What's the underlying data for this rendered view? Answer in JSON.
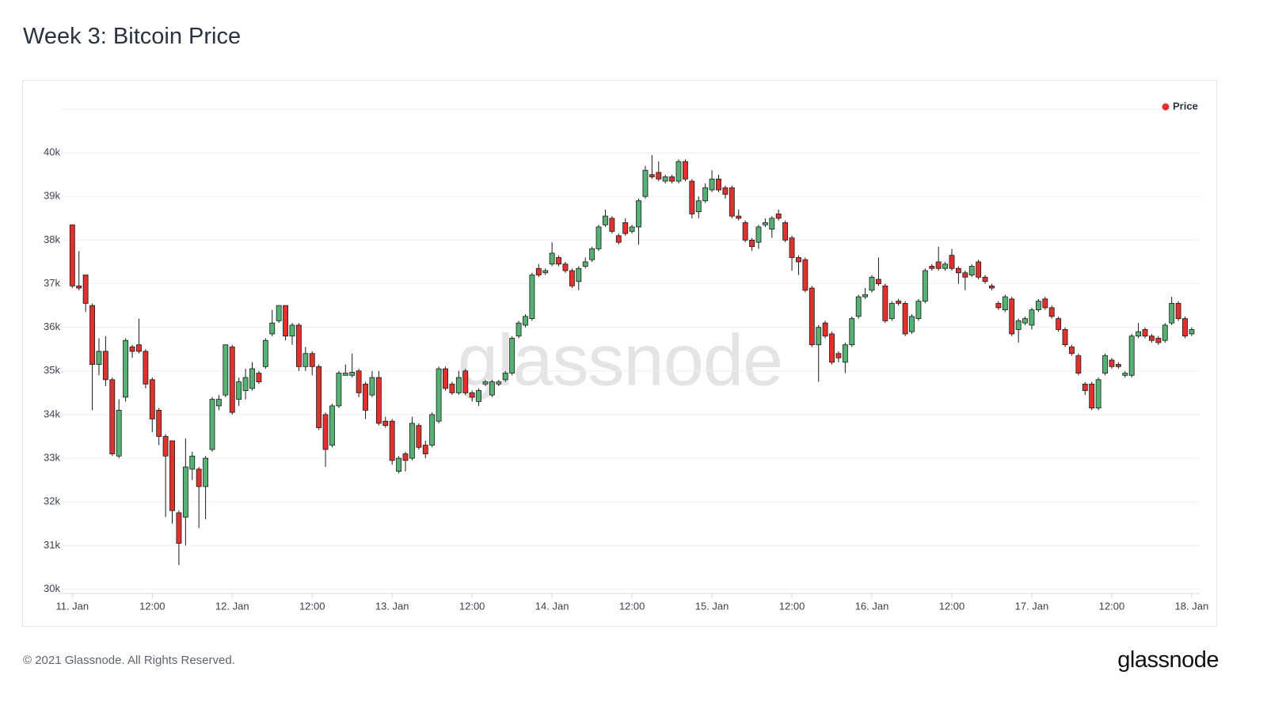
{
  "title": "Week 3: Bitcoin Price",
  "footer": "© 2021 Glassnode. All Rights Reserved.",
  "logo": "glassnode",
  "watermark": "glassnode",
  "chart_data": {
    "type": "candlestick",
    "legend": "top-right",
    "grid": true,
    "xlim": [
      -1.7,
      169.2
    ],
    "ylim": [
      29.9,
      41
    ],
    "yticks": [
      {
        "value": 30,
        "label": "30k"
      },
      {
        "value": 31,
        "label": "31k"
      },
      {
        "value": 32,
        "label": "32k"
      },
      {
        "value": 33,
        "label": "33k"
      },
      {
        "value": 34,
        "label": "34k"
      },
      {
        "value": 35,
        "label": "35k"
      },
      {
        "value": 36,
        "label": "36k"
      },
      {
        "value": 37,
        "label": "37k"
      },
      {
        "value": 38,
        "label": "38k"
      },
      {
        "value": 39,
        "label": "39k"
      },
      {
        "value": 40,
        "label": "40k"
      }
    ],
    "xticks": [
      {
        "value": 0,
        "label": "11. Jan"
      },
      {
        "value": 12,
        "label": "12:00"
      },
      {
        "value": 24,
        "label": "12. Jan"
      },
      {
        "value": 36,
        "label": "12:00"
      },
      {
        "value": 48,
        "label": "13. Jan"
      },
      {
        "value": 60,
        "label": "12:00"
      },
      {
        "value": 72,
        "label": "14. Jan"
      },
      {
        "value": 84,
        "label": "12:00"
      },
      {
        "value": 96,
        "label": "15. Jan"
      },
      {
        "value": 108,
        "label": "12:00"
      },
      {
        "value": 120,
        "label": "16. Jan"
      },
      {
        "value": 132,
        "label": "12:00"
      },
      {
        "value": 144,
        "label": "17. Jan"
      },
      {
        "value": 156,
        "label": "12:00"
      },
      {
        "value": 168,
        "label": "18. Jan"
      }
    ],
    "x": [
      0,
      1,
      2,
      3,
      4,
      5,
      6,
      7,
      8,
      9,
      10,
      11,
      12,
      13,
      14,
      15,
      16,
      17,
      18,
      19,
      20,
      21,
      22,
      23,
      24,
      25,
      26,
      27,
      28,
      29,
      30,
      31,
      32,
      33,
      34,
      35,
      36,
      37,
      38,
      39,
      40,
      41,
      42,
      43,
      44,
      45,
      46,
      47,
      48,
      49,
      50,
      51,
      52,
      53,
      54,
      55,
      56,
      57,
      58,
      59,
      60,
      61,
      62,
      63,
      64,
      65,
      66,
      67,
      68,
      69,
      70,
      71,
      72,
      73,
      74,
      75,
      76,
      77,
      78,
      79,
      80,
      81,
      82,
      83,
      84,
      85,
      86,
      87,
      88,
      89,
      90,
      91,
      92,
      93,
      94,
      95,
      96,
      97,
      98,
      99,
      100,
      101,
      102,
      103,
      104,
      105,
      106,
      107,
      108,
      109,
      110,
      111,
      112,
      113,
      114,
      115,
      116,
      117,
      118,
      119,
      120,
      121,
      122,
      123,
      124,
      125,
      126,
      127,
      128,
      129,
      130,
      131,
      132,
      133,
      134,
      135,
      136,
      137,
      138,
      139,
      140,
      141,
      142,
      143,
      144,
      145,
      146,
      147,
      148,
      149,
      150,
      151,
      152,
      153,
      154,
      155,
      156,
      157,
      158,
      159,
      160,
      161,
      162,
      163,
      164,
      165,
      166,
      167,
      168
    ],
    "series": [
      {
        "name": "Price",
        "color": "#e0312e",
        "up_color": "#56b274",
        "down_color": "#e0312e",
        "open": [
          38.35,
          36.95,
          37.2,
          36.5,
          35.15,
          35.45,
          34.8,
          33.05,
          34.4,
          35.55,
          35.6,
          35.45,
          34.8,
          34.1,
          33.5,
          33.4,
          31.75,
          31.65,
          32.75,
          32.75,
          32.35,
          33.2,
          34.2,
          34.45,
          35.55,
          34.35,
          34.55,
          34.6,
          34.95,
          35.1,
          35.85,
          36.15,
          36.5,
          35.8,
          36.05,
          35.1,
          35.4,
          35.1,
          34.0,
          33.3,
          34.2,
          34.9,
          34.9,
          35.0,
          34.7,
          34.45,
          34.85,
          33.85,
          33.85,
          32.7,
          33.1,
          33.0,
          33.75,
          33.3,
          33.3,
          33.85,
          35.05,
          34.7,
          34.5,
          35.0,
          34.5,
          34.3,
          34.7,
          34.45,
          34.7,
          34.8,
          34.95,
          35.8,
          36.05,
          36.2,
          37.35,
          37.25,
          37.45,
          37.6,
          37.45,
          37.3,
          37.05,
          37.4,
          37.55,
          37.8,
          38.35,
          38.5,
          38.1,
          38.4,
          38.2,
          38.3,
          39.0,
          39.5,
          39.55,
          39.35,
          39.45,
          39.35,
          39.8,
          39.35,
          38.65,
          38.9,
          39.15,
          39.4,
          39.2,
          39.2,
          38.55,
          38.4,
          38.0,
          37.95,
          38.35,
          38.25,
          38.6,
          38.4,
          38.05,
          37.6,
          37.55,
          36.9,
          35.6,
          36.1,
          35.85,
          35.4,
          35.2,
          35.6,
          36.25,
          36.7,
          36.85,
          37.1,
          36.95,
          36.2,
          36.6,
          36.55,
          35.9,
          36.2,
          36.6,
          37.4,
          37.5,
          37.35,
          37.65,
          37.35,
          37.25,
          37.2,
          37.5,
          37.15,
          36.95,
          36.55,
          36.4,
          36.65,
          35.95,
          36.1,
          36.05,
          36.4,
          36.65,
          36.45,
          36.2,
          35.95,
          35.55,
          35.35,
          34.7,
          34.7,
          34.15,
          34.95,
          35.25,
          35.15,
          34.9,
          34.9,
          35.8,
          35.95,
          35.8,
          35.75,
          35.7,
          36.1,
          36.55,
          36.2,
          35.85
        ],
        "high": [
          38.35,
          37.75,
          37.2,
          36.55,
          35.75,
          35.8,
          34.85,
          34.35,
          35.75,
          35.6,
          36.2,
          35.5,
          34.85,
          34.15,
          33.55,
          33.4,
          31.8,
          33.45,
          33.15,
          32.8,
          33.05,
          34.4,
          34.45,
          35.6,
          35.6,
          34.85,
          35.05,
          35.2,
          35.0,
          35.75,
          36.4,
          36.5,
          36.5,
          36.1,
          36.1,
          35.55,
          35.45,
          35.15,
          34.05,
          34.25,
          35.0,
          35.15,
          35.4,
          35.05,
          34.75,
          35.0,
          35.0,
          33.95,
          33.9,
          33.05,
          33.15,
          33.95,
          33.8,
          33.4,
          34.05,
          35.1,
          35.1,
          34.75,
          35.0,
          35.05,
          34.55,
          34.6,
          34.8,
          34.8,
          34.8,
          35.0,
          35.8,
          36.15,
          36.3,
          37.25,
          37.45,
          37.35,
          37.95,
          37.65,
          37.5,
          37.35,
          37.4,
          37.6,
          37.85,
          38.35,
          38.7,
          38.55,
          38.15,
          38.5,
          38.35,
          38.95,
          39.7,
          39.95,
          39.8,
          39.5,
          39.5,
          39.85,
          39.85,
          39.4,
          39.0,
          39.3,
          39.6,
          39.5,
          39.25,
          39.25,
          38.7,
          38.45,
          38.05,
          38.35,
          38.5,
          38.55,
          38.7,
          38.45,
          38.1,
          37.65,
          37.6,
          36.95,
          36.05,
          36.15,
          35.9,
          35.45,
          35.65,
          36.25,
          36.75,
          36.9,
          37.2,
          37.6,
          37.0,
          36.6,
          36.65,
          36.6,
          36.3,
          36.65,
          37.35,
          37.45,
          37.85,
          37.5,
          37.8,
          37.4,
          37.3,
          37.45,
          37.55,
          37.2,
          37.0,
          36.6,
          36.75,
          36.7,
          36.2,
          36.25,
          36.45,
          36.65,
          36.7,
          36.5,
          36.25,
          36.0,
          35.6,
          35.4,
          34.75,
          34.75,
          34.85,
          35.4,
          35.3,
          35.2,
          35.0,
          35.85,
          36.1,
          36.0,
          35.85,
          35.8,
          36.1,
          36.7,
          36.6,
          36.25,
          36.0
        ],
        "low": [
          36.9,
          36.85,
          36.35,
          34.1,
          34.9,
          34.65,
          33.05,
          33.0,
          34.3,
          35.3,
          35.4,
          34.6,
          33.6,
          33.3,
          31.65,
          31.5,
          30.55,
          31.0,
          32.5,
          31.4,
          31.6,
          33.15,
          34.1,
          34.4,
          34.0,
          34.2,
          34.35,
          34.55,
          34.7,
          35.05,
          35.8,
          36.1,
          35.7,
          35.6,
          35.0,
          35.0,
          34.9,
          33.65,
          32.8,
          33.25,
          34.15,
          34.9,
          34.85,
          34.4,
          33.9,
          34.4,
          33.75,
          33.7,
          32.85,
          32.65,
          32.7,
          32.95,
          33.2,
          33.0,
          33.25,
          33.8,
          34.55,
          34.45,
          34.45,
          34.45,
          34.3,
          34.2,
          34.65,
          34.4,
          34.65,
          34.75,
          34.9,
          35.75,
          36.0,
          36.15,
          37.15,
          37.2,
          37.4,
          37.4,
          37.25,
          36.9,
          36.85,
          37.35,
          37.5,
          37.75,
          38.3,
          38.15,
          37.9,
          38.1,
          38.15,
          37.9,
          38.95,
          39.4,
          39.35,
          39.3,
          39.3,
          39.3,
          39.35,
          38.5,
          38.5,
          38.85,
          39.1,
          39.1,
          38.95,
          38.5,
          38.45,
          37.95,
          37.75,
          37.8,
          38.3,
          38.05,
          38.45,
          37.95,
          37.3,
          37.2,
          36.8,
          35.55,
          34.75,
          35.75,
          35.15,
          35.2,
          34.95,
          35.55,
          36.2,
          36.65,
          36.8,
          36.95,
          36.1,
          36.15,
          36.5,
          35.8,
          35.85,
          36.15,
          36.55,
          37.3,
          37.3,
          37.3,
          37.3,
          37.0,
          36.85,
          37.15,
          37.1,
          37.0,
          36.85,
          36.4,
          36.35,
          35.8,
          35.65,
          36.05,
          35.95,
          36.35,
          36.4,
          36.2,
          35.9,
          35.55,
          35.35,
          34.9,
          34.45,
          34.1,
          34.1,
          34.9,
          35.05,
          35.05,
          34.85,
          34.85,
          35.75,
          35.75,
          35.65,
          35.6,
          35.65,
          36.05,
          36.15,
          35.75,
          35.8
        ],
        "close": [
          36.95,
          36.9,
          36.55,
          35.15,
          35.45,
          34.8,
          33.1,
          34.1,
          35.7,
          35.45,
          35.45,
          34.7,
          33.9,
          33.5,
          33.05,
          31.8,
          31.05,
          32.8,
          33.05,
          32.35,
          33.0,
          34.35,
          34.35,
          35.6,
          34.05,
          34.75,
          34.85,
          35.05,
          34.75,
          35.7,
          36.1,
          36.5,
          35.8,
          36.05,
          35.1,
          35.4,
          35.1,
          33.7,
          33.2,
          34.2,
          34.95,
          34.95,
          34.97,
          34.5,
          34.1,
          34.85,
          33.8,
          33.75,
          32.95,
          33.0,
          32.95,
          33.8,
          33.25,
          33.1,
          34.0,
          35.05,
          34.6,
          34.5,
          34.85,
          34.5,
          34.4,
          34.55,
          34.75,
          34.75,
          34.75,
          34.95,
          35.75,
          36.1,
          36.25,
          37.2,
          37.2,
          37.3,
          37.7,
          37.45,
          37.3,
          36.95,
          37.35,
          37.5,
          37.8,
          38.3,
          38.55,
          38.2,
          37.95,
          38.15,
          38.3,
          38.9,
          39.6,
          39.45,
          39.4,
          39.45,
          39.35,
          39.8,
          39.4,
          38.6,
          38.9,
          39.2,
          39.4,
          39.15,
          39.05,
          38.55,
          38.5,
          38.0,
          37.85,
          38.3,
          38.4,
          38.5,
          38.5,
          38.0,
          37.6,
          37.5,
          36.85,
          35.6,
          36.0,
          35.8,
          35.2,
          35.3,
          35.6,
          36.2,
          36.7,
          36.75,
          37.15,
          37.0,
          36.15,
          36.55,
          36.55,
          35.85,
          36.25,
          36.6,
          37.3,
          37.35,
          37.35,
          37.45,
          37.35,
          37.25,
          37.15,
          37.4,
          37.15,
          37.05,
          36.9,
          36.45,
          36.7,
          35.85,
          36.15,
          36.2,
          36.4,
          36.6,
          36.45,
          36.25,
          35.95,
          35.6,
          35.4,
          34.95,
          34.55,
          34.15,
          34.8,
          35.35,
          35.1,
          35.1,
          34.95,
          35.8,
          35.9,
          35.8,
          35.7,
          35.65,
          36.05,
          36.55,
          36.2,
          35.8,
          35.95
        ]
      }
    ]
  }
}
